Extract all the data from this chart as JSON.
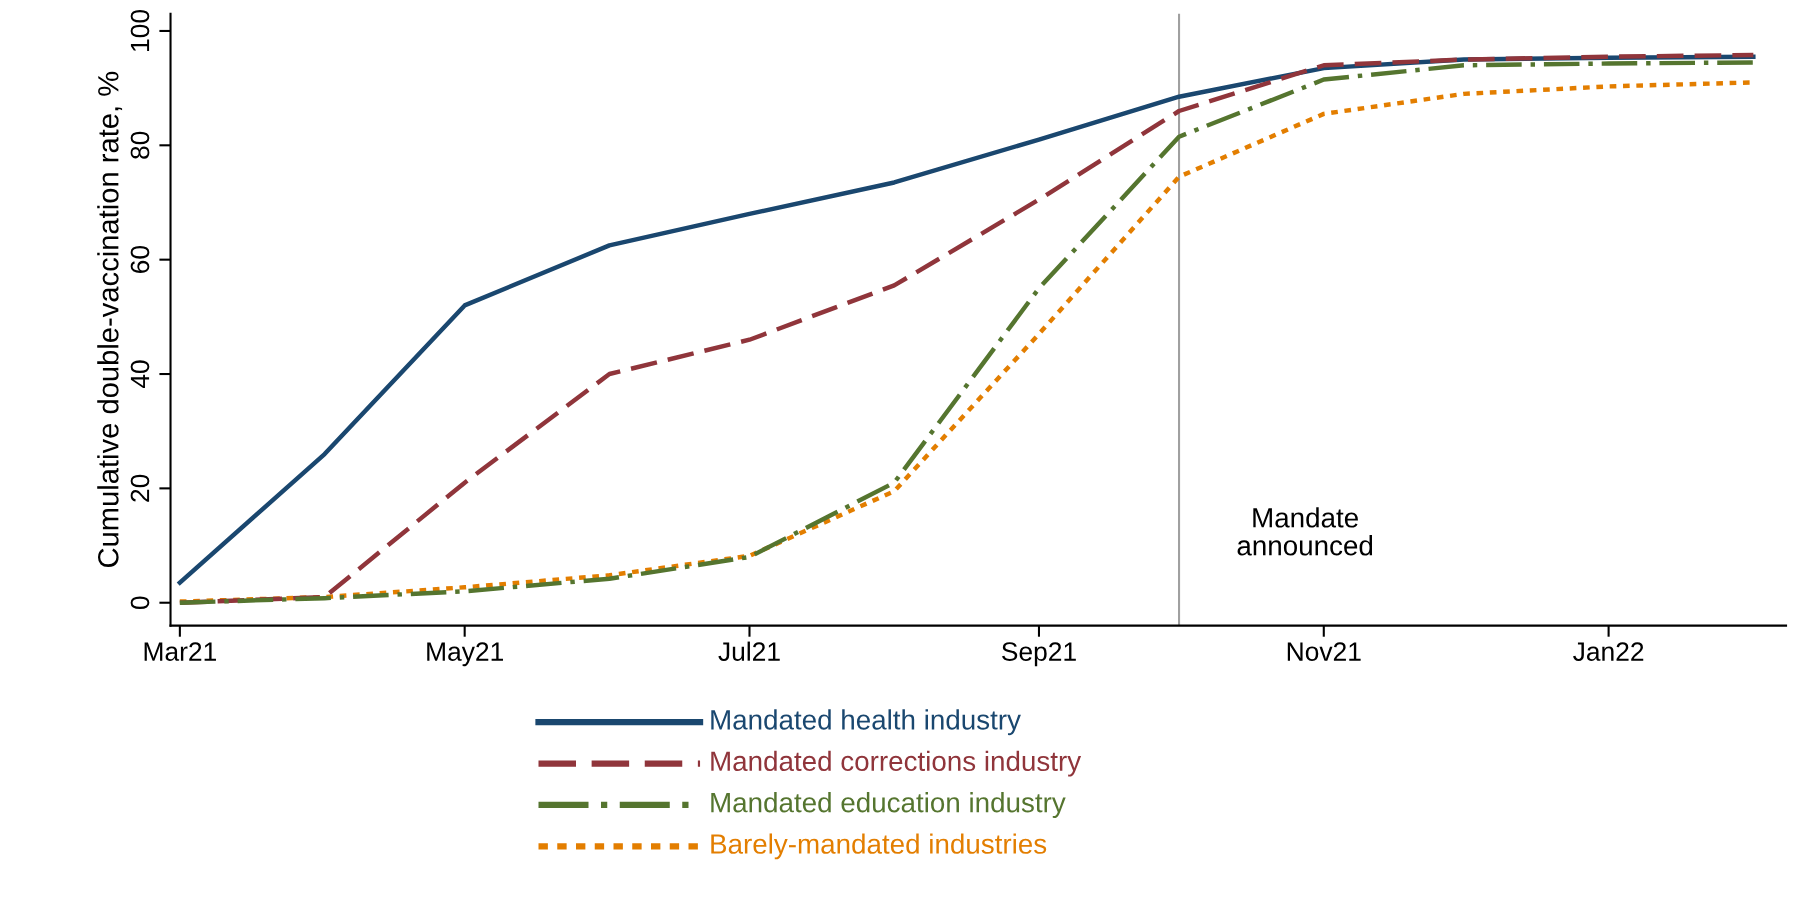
{
  "chart_data": {
    "type": "line",
    "ylabel": "Cumulative double-vaccination rate, %",
    "x": [
      "2021-03",
      "2021-04",
      "2021-05",
      "2021-06",
      "2021-07",
      "2021-08",
      "2021-09",
      "2021-10",
      "2021-11",
      "2021-12",
      "2022-01",
      "2022-02"
    ],
    "series": [
      {
        "name": "Mandated health industry",
        "color": "#1a476f",
        "line_style": "solid",
        "values": [
          3.5,
          26,
          52,
          62.5,
          68,
          73.5,
          81,
          88.5,
          93.5,
          95,
          95.3,
          95.5
        ]
      },
      {
        "name": "Mandated corrections industry",
        "color": "#90353b",
        "line_style": "dashed",
        "values": [
          0,
          1,
          21,
          40,
          46,
          55.5,
          70.5,
          86,
          94,
          95,
          95.5,
          95.8
        ]
      },
      {
        "name": "Mandated education industry",
        "color": "#55752f",
        "line_style": "dashdot",
        "values": [
          0,
          0.8,
          2,
          4.2,
          8,
          21,
          55,
          81.5,
          91.5,
          94,
          94.3,
          94.5
        ]
      },
      {
        "name": "Barely-mandated industries",
        "color": "#e37e00",
        "line_style": "dotted",
        "values": [
          0.2,
          1,
          2.7,
          4.8,
          8.2,
          19.5,
          47,
          74.5,
          85.5,
          89,
          90.3,
          91
        ]
      }
    ],
    "xlim": [
      "2021-02-27",
      "2022-02-08"
    ],
    "xticks": [
      {
        "value": "2021-03",
        "label": "Mar21"
      },
      {
        "value": "2021-05",
        "label": "May21"
      },
      {
        "value": "2021-07",
        "label": "Jul21"
      },
      {
        "value": "2021-09",
        "label": "Sep21"
      },
      {
        "value": "2021-11",
        "label": "Nov21"
      },
      {
        "value": "2022-01",
        "label": "Jan22"
      }
    ],
    "ylim": [
      -4,
      103
    ],
    "yticks": [
      0,
      20,
      40,
      60,
      80,
      100
    ],
    "ref_lines": [
      {
        "axis": "x",
        "value": "2021-10",
        "label": "Mandate\nannounced",
        "color": "#a0a0a0",
        "line_style": "solid"
      }
    ],
    "grid": false,
    "legend": "bottom",
    "marker": "none"
  }
}
